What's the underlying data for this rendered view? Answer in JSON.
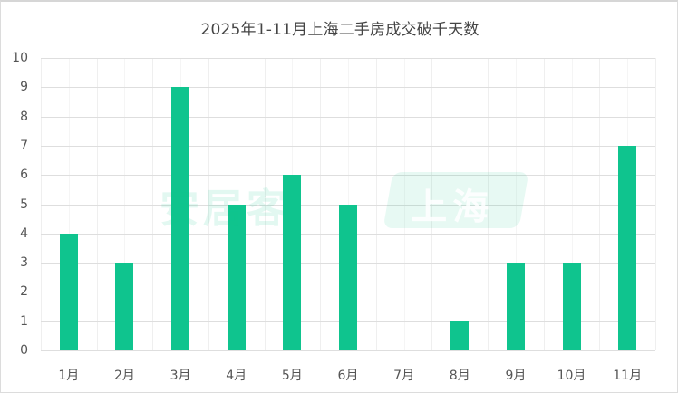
{
  "chart_data": {
    "type": "bar",
    "title": "2025年1-11月上海二手房成交破千天数",
    "xlabel": "",
    "ylabel": "",
    "categories": [
      "1月",
      "2月",
      "3月",
      "4月",
      "5月",
      "6月",
      "7月",
      "8月",
      "9月",
      "10月",
      "11月"
    ],
    "values": [
      4,
      3,
      9,
      5,
      6,
      5,
      0,
      1,
      3,
      3,
      7
    ],
    "ylim": [
      0,
      10
    ],
    "yticks": [
      "0",
      "1",
      "2",
      "3",
      "4",
      "5",
      "6",
      "7",
      "8",
      "9",
      "10"
    ],
    "grid": true,
    "legend": null,
    "bar_color": "#0fc48e"
  },
  "watermark": {
    "left_text": "安居客",
    "box_text": "上海"
  }
}
